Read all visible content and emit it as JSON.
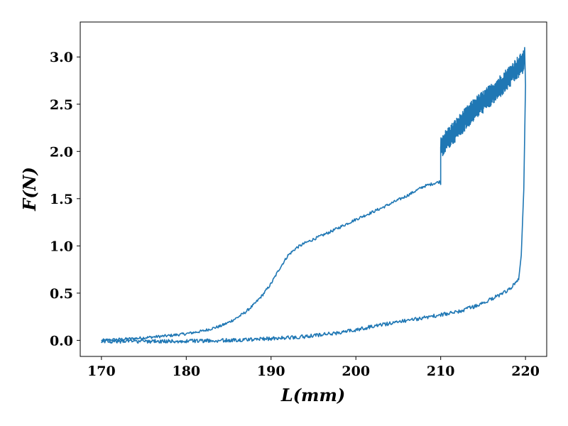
{
  "chart_data": {
    "type": "line",
    "xlabel": "L(mm)",
    "ylabel": "F(N)",
    "xlim": [
      167.5,
      222.5
    ],
    "ylim": [
      -0.17,
      3.37
    ],
    "xticks": [
      170,
      180,
      190,
      200,
      210,
      220
    ],
    "yticks": [
      0.0,
      0.5,
      1.0,
      1.5,
      2.0,
      2.5,
      3.0
    ],
    "xtick_labels": [
      "170",
      "180",
      "190",
      "200",
      "210",
      "220"
    ],
    "ytick_labels": [
      "0.0",
      "0.5",
      "1.0",
      "1.5",
      "2.0",
      "2.5",
      "3.0"
    ],
    "grid": false,
    "series": [
      {
        "color": "#1f77b4",
        "loading_branch": {
          "x": [
            170,
            172,
            174,
            176,
            178,
            180,
            182,
            184,
            185,
            186,
            187,
            188,
            189,
            190,
            191,
            192,
            193,
            194,
            195,
            197,
            200,
            203,
            206,
            208,
            209.9
          ],
          "y": [
            0.0,
            0.01,
            0.02,
            0.035,
            0.05,
            0.07,
            0.1,
            0.15,
            0.19,
            0.24,
            0.3,
            0.38,
            0.48,
            0.6,
            0.76,
            0.9,
            0.98,
            1.03,
            1.07,
            1.15,
            1.28,
            1.4,
            1.53,
            1.63,
            1.68
          ],
          "noise": 0.015
        },
        "jump": {
          "x": 210,
          "y": [
            1.65,
            2.05
          ]
        },
        "noisy_branch": {
          "x": [
            210,
            212,
            214,
            216,
            218,
            219,
            219.8
          ],
          "y": [
            2.05,
            2.25,
            2.45,
            2.6,
            2.78,
            2.88,
            2.95
          ],
          "noise": 0.12
        },
        "drop": {
          "x": [
            219.9,
            220.0,
            219.8,
            219.5,
            219.2
          ],
          "y": [
            3.1,
            2.7,
            1.6,
            0.9,
            0.65
          ]
        },
        "unloading_branch": {
          "x": [
            219.2,
            218,
            216,
            214,
            212,
            210,
            208,
            206,
            204,
            202,
            200,
            198,
            196,
            194,
            192,
            190,
            188,
            186,
            184,
            182,
            180,
            176,
            172,
            170
          ],
          "y": [
            0.65,
            0.53,
            0.44,
            0.36,
            0.3,
            0.27,
            0.24,
            0.21,
            0.18,
            0.15,
            0.11,
            0.08,
            0.06,
            0.04,
            0.03,
            0.02,
            0.01,
            0.005,
            0.0,
            -0.005,
            -0.01,
            -0.01,
            -0.01,
            -0.01
          ],
          "noise": 0.02
        }
      }
    ]
  }
}
